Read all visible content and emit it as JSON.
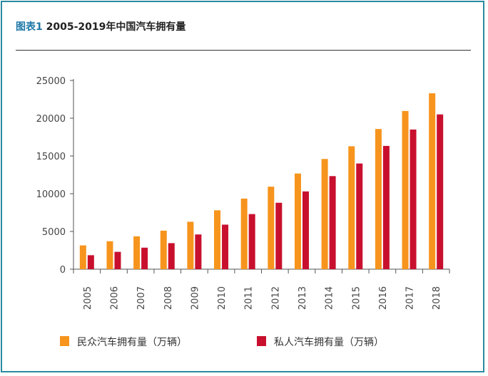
{
  "header": {
    "figure_label": "图表1",
    "title_text": "2005-2019年中国汽车拥有量"
  },
  "chart_data": {
    "type": "bar",
    "categories": [
      "2005",
      "2006",
      "2007",
      "2008",
      "2009",
      "2010",
      "2011",
      "2012",
      "2013",
      "2014",
      "2015",
      "2016",
      "2017",
      "2018"
    ],
    "series": [
      {
        "name": "民众汽车拥有量（万辆）",
        "color": "#f7941d",
        "values": [
          3150,
          3700,
          4350,
          5100,
          6280,
          7800,
          9350,
          10930,
          12670,
          14600,
          16280,
          18570,
          20960,
          23300
        ]
      },
      {
        "name": "私人汽车拥有量（万辆）",
        "color": "#c8102e",
        "values": [
          1850,
          2300,
          2850,
          3450,
          4600,
          5900,
          7300,
          8800,
          10300,
          12330,
          14000,
          16330,
          18500,
          20500
        ]
      }
    ],
    "yticks": [
      0,
      5000,
      10000,
      15000,
      20000,
      25000
    ],
    "ylim": [
      0,
      25000
    ],
    "legend_position": "bottom",
    "grid": false
  }
}
